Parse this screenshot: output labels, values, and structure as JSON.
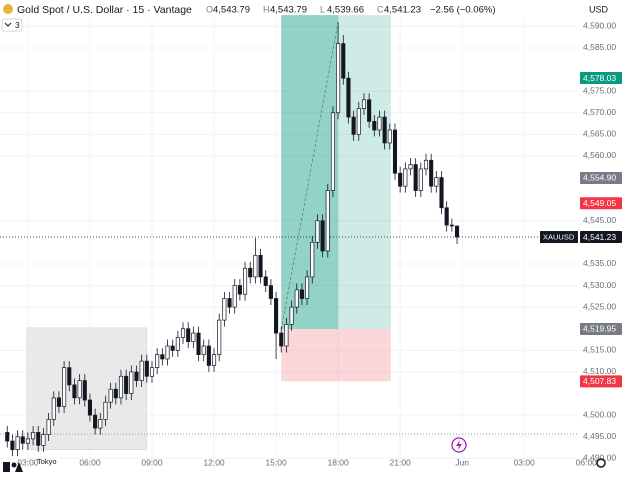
{
  "chart_data": {
    "type": "candlestick",
    "title": "Gold Spot / U.S. Dollar · 15 · Vantage",
    "currency": "USD",
    "indicator_count": "3",
    "legend": [
      {
        "key": "O",
        "value": 4543.79,
        "label": "4,543.79"
      },
      {
        "key": "H",
        "value": 4543.79,
        "label": "4,543.79"
      },
      {
        "key": "L",
        "value": 4539.66,
        "label": "4,539.66"
      },
      {
        "key": "C",
        "value": 4541.23,
        "label": "4,541.23"
      }
    ],
    "change": {
      "value": -2.56,
      "label": "−2.56 (−0.06%)"
    },
    "x": [
      2,
      2.25,
      2.5,
      2.75,
      3,
      3.25,
      3.5,
      3.75,
      4,
      4.25,
      4.5,
      4.75,
      5,
      5.25,
      5.5,
      5.75,
      6,
      6.25,
      6.5,
      6.75,
      7,
      7.25,
      7.5,
      7.75,
      8,
      8.25,
      8.5,
      8.75,
      9,
      9.25,
      9.5,
      9.75,
      10,
      10.25,
      10.5,
      10.75,
      11,
      11.25,
      11.5,
      11.75,
      12,
      12.25,
      12.5,
      12.75,
      13,
      13.25,
      13.5,
      13.75,
      14,
      14.25,
      14.5,
      14.75,
      15,
      15.25,
      15.5,
      15.75,
      16,
      16.25,
      16.5,
      16.75,
      17,
      17.25,
      17.5,
      17.75,
      18,
      18.25,
      18.5,
      18.75,
      19,
      19.25,
      19.5,
      19.75,
      20,
      20.25,
      20.5,
      20.75,
      21,
      21.25,
      21.5,
      21.75,
      22,
      22.25,
      22.5,
      22.75,
      23,
      23.25,
      23.5,
      23.75
    ],
    "open": [
      4496,
      4494,
      4492,
      4495,
      4493.5,
      4494.5,
      4496,
      4493,
      4495.5,
      4499,
      4504,
      4502,
      4511,
      4507,
      4504,
      4508,
      4503.5,
      4500,
      4497,
      4499,
      4503,
      4506,
      4504,
      4509,
      4505,
      4510,
      4508,
      4512.5,
      4509,
      4511,
      4514,
      4513,
      4516,
      4515,
      4518,
      4520,
      4517,
      4519,
      4514,
      4516,
      4511.5,
      4514,
      4522,
      4527,
      4525,
      4530,
      4528,
      4534,
      4532,
      4537,
      4532,
      4530,
      4527,
      4519,
      4516,
      4521,
      4525,
      4529,
      4527,
      4532,
      4540,
      4545,
      4538,
      4552,
      4570,
      4586,
      4578,
      4569,
      4565,
      4571,
      4573,
      4568,
      4566,
      4569,
      4563,
      4566,
      4556,
      4553,
      4557,
      4558,
      4552,
      4557,
      4559,
      4553,
      4555,
      4548,
      4544,
      4543.79
    ],
    "high": [
      4497.5,
      4495.5,
      4496.5,
      4496.5,
      4496,
      4497.5,
      4497.5,
      4497,
      4500.5,
      4505.5,
      4505.5,
      4512.5,
      4512.5,
      4508.5,
      4509.5,
      4509.5,
      4505,
      4501.5,
      4500.5,
      4504.5,
      4507.5,
      4507.5,
      4510.5,
      4510.5,
      4511.5,
      4511.5,
      4514,
      4514,
      4512.5,
      4515.5,
      4515.5,
      4517.5,
      4517.5,
      4519.5,
      4521.5,
      4521.5,
      4520.5,
      4520.5,
      4517.5,
      4517.5,
      4515.5,
      4523.5,
      4528.5,
      4528.5,
      4531.5,
      4531.5,
      4535.5,
      4535.5,
      4541,
      4538.5,
      4533.5,
      4531.5,
      4528.5,
      4520.5,
      4522.5,
      4526.5,
      4530.5,
      4530.5,
      4533.5,
      4541.5,
      4546.5,
      4546.5,
      4553.5,
      4571.5,
      4591,
      4588,
      4579.5,
      4570.5,
      4572.5,
      4574.5,
      4574.5,
      4569.5,
      4570.5,
      4570.5,
      4567.5,
      4567.5,
      4557.5,
      4558.5,
      4559.5,
      4559.5,
      4558.5,
      4560.5,
      4560.5,
      4556.5,
      4556.5,
      4549.5,
      4545.5,
      4543.79
    ],
    "low": [
      4492.5,
      4490.5,
      4490.5,
      4492,
      4492,
      4493,
      4491.5,
      4491.5,
      4494,
      4497.5,
      4500.5,
      4500.5,
      4505.5,
      4502.5,
      4502.5,
      4502,
      4498.5,
      4495.5,
      4495.5,
      4497.5,
      4501.5,
      4502.5,
      4502.5,
      4503.5,
      4503.5,
      4506.5,
      4506.5,
      4507.5,
      4507.5,
      4509.5,
      4511.5,
      4511.5,
      4513.5,
      4513.5,
      4516.5,
      4515.5,
      4515.5,
      4512.5,
      4512.5,
      4510,
      4510,
      4512.5,
      4520.5,
      4523.5,
      4523.5,
      4526.5,
      4526.5,
      4530.5,
      4530.5,
      4530.5,
      4528.5,
      4525.5,
      4513,
      4514.5,
      4514.5,
      4519.5,
      4523.5,
      4525.5,
      4525.5,
      4530.5,
      4538.5,
      4536.5,
      4536.5,
      4550.5,
      4568.5,
      4576.5,
      4567.5,
      4563.5,
      4563.5,
      4569.5,
      4566.5,
      4564.5,
      4564.5,
      4561.5,
      4561.5,
      4554.5,
      4551.5,
      4551.5,
      4555.5,
      4550.5,
      4550.5,
      4555.5,
      4551.5,
      4551.5,
      4546.5,
      4542.5,
      4542.5,
      4539.66
    ],
    "close": [
      4494,
      4492,
      4495,
      4493.5,
      4494.5,
      4496,
      4493,
      4495.5,
      4499,
      4504,
      4502,
      4511,
      4507,
      4504,
      4508,
      4503.5,
      4500,
      4497,
      4499,
      4503,
      4506,
      4504,
      4509,
      4505,
      4510,
      4508,
      4512.5,
      4509,
      4511,
      4514,
      4513,
      4516,
      4515,
      4518,
      4520,
      4517,
      4519,
      4514,
      4516,
      4511.5,
      4514,
      4522,
      4527,
      4525,
      4530,
      4528,
      4534,
      4532,
      4537,
      4532,
      4530,
      4527,
      4519,
      4516,
      4521,
      4525,
      4529,
      4527,
      4532,
      4540,
      4545,
      4538,
      4552,
      4570,
      4586,
      4578,
      4569,
      4565,
      4571,
      4573,
      4568,
      4566,
      4569,
      4563,
      4566,
      4556,
      4553,
      4557,
      4558,
      4552,
      4557,
      4559,
      4553,
      4555,
      4548,
      4544,
      4543.79,
      4541.23
    ],
    "up_color": "#ffffff",
    "down_color": "#131722",
    "grid": true,
    "xlim": [
      1.65,
      29.6
    ],
    "ylim": [
      4487.3,
      4596.1
    ],
    "xticks": [
      {
        "value": 3,
        "label": "03:00"
      },
      {
        "value": 6,
        "label": "06:00"
      },
      {
        "value": 9,
        "label": "09:00"
      },
      {
        "value": 12,
        "label": "12:00"
      },
      {
        "value": 15,
        "label": "15:00"
      },
      {
        "value": 18,
        "label": "18:00"
      },
      {
        "value": 21,
        "label": "21:00"
      },
      {
        "value": 24,
        "label": "Jun"
      },
      {
        "value": 27,
        "label": "03:00"
      },
      {
        "value": 30,
        "label": "06:00"
      }
    ],
    "yticks": [
      {
        "value": 4490,
        "label": "4,490.00"
      },
      {
        "value": 4495,
        "label": "4,495.00"
      },
      {
        "value": 4500,
        "label": "4,500.00"
      },
      {
        "value": 4510,
        "label": "4,510.00"
      },
      {
        "value": 4515,
        "label": "4,515.00"
      },
      {
        "value": 4525,
        "label": "4,525.00"
      },
      {
        "value": 4530,
        "label": "4,530.00"
      },
      {
        "value": 4535,
        "label": "4,535.00"
      },
      {
        "value": 4545,
        "label": "4,545.00"
      },
      {
        "value": 4560,
        "label": "4,560.00"
      },
      {
        "value": 4565,
        "label": "4,565.00"
      },
      {
        "value": 4570,
        "label": "4,570.00"
      },
      {
        "value": 4575,
        "label": "4,575.00"
      },
      {
        "value": 4585,
        "label": "4,585.00"
      },
      {
        "value": 4590,
        "label": "4,590.00"
      }
    ],
    "price_labels": [
      {
        "value": 4578.03,
        "label": "4,578.03",
        "color": "#089981"
      },
      {
        "value": 4554.9,
        "label": "4,554.90",
        "color": "#787b86"
      },
      {
        "value": 4549.05,
        "label": "4,549.05",
        "color": "#f23645"
      },
      {
        "value": 4519.95,
        "label": "4,519.95",
        "color": "#787b86"
      },
      {
        "value": 4507.83,
        "label": "4,507.83",
        "color": "#f23645"
      }
    ],
    "last_price": {
      "name": "XAUUSD",
      "value": 4541.23,
      "label": "4,541.23",
      "color": "#131722"
    },
    "session": {
      "name": "Tokyo",
      "x": [
        2.95,
        8.75
      ],
      "range": [
        4492,
        4520.2
      ],
      "color": "#e9e9e9"
    },
    "position": {
      "x": [
        15.25,
        20.55
      ],
      "peak_x": 18,
      "entry": 4519.95,
      "target": 4592.6,
      "stop": 4507.83,
      "peak": 4591
    },
    "reference_line": 4495.6
  }
}
